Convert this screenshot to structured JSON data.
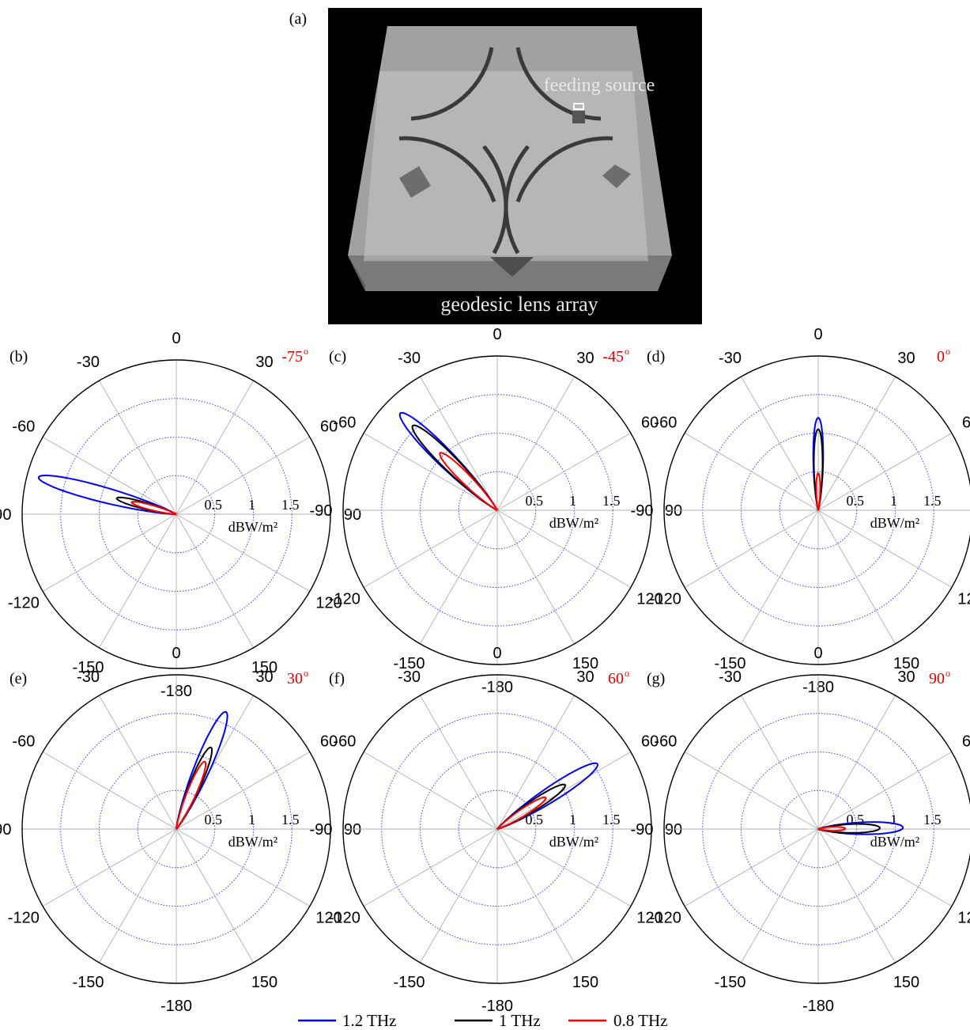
{
  "panel_a": {
    "label": "(a)",
    "annotations": {
      "feed": "feeding source",
      "array": "geodesic lens array"
    },
    "colors": {
      "background": "#000000",
      "lens": "#b8b8b8",
      "text": "#e8e8e8"
    }
  },
  "legend": {
    "placement": "bottom-center",
    "entries": [
      {
        "label": "1.2 THz",
        "color": "#0000ff"
      },
      {
        "label": "1 THz",
        "color": "#000000"
      },
      {
        "label": "0.8 THz",
        "color": "#ff0000"
      }
    ]
  },
  "chart_data": [
    {
      "type": "polar",
      "panel": "(b)",
      "steer_label": "-75",
      "steer_unit": "o",
      "angle_ticks": [
        0,
        30,
        60,
        90,
        120,
        150,
        -180,
        -150,
        -120,
        -90,
        -60,
        -30
      ],
      "radial_ticks": [
        "0.5",
        "1",
        "1.5"
      ],
      "radial_unit": "dBW/m²",
      "rlim": [
        0,
        2
      ],
      "grid": true,
      "series": [
        {
          "name": "1.2 THz",
          "color": "#0000ff",
          "main_lobe_angle": -75,
          "peak": 1.85,
          "beamwidth": 6
        },
        {
          "name": "1 THz",
          "color": "#000000",
          "main_lobe_angle": -75,
          "peak": 0.8,
          "beamwidth": 6
        },
        {
          "name": "0.8 THz",
          "color": "#ff0000",
          "main_lobe_angle": -75,
          "peak": 0.6,
          "beamwidth": 6
        }
      ]
    },
    {
      "type": "polar",
      "panel": "(c)",
      "steer_label": "-45",
      "steer_unit": "o",
      "angle_ticks": [
        0,
        30,
        60,
        90,
        120,
        150,
        -180,
        -150,
        -120,
        -90,
        -60,
        -30
      ],
      "radial_ticks": [
        "0.5",
        "1",
        "1.5"
      ],
      "radial_unit": "dBW/m²",
      "rlim": [
        0,
        2
      ],
      "grid": true,
      "series": [
        {
          "name": "1.2 THz",
          "color": "#0000ff",
          "main_lobe_angle": -45,
          "peak": 1.78,
          "beamwidth": 7
        },
        {
          "name": "1 THz",
          "color": "#000000",
          "main_lobe_angle": -45,
          "peak": 1.55,
          "beamwidth": 7
        },
        {
          "name": "0.8 THz",
          "color": "#ff0000",
          "main_lobe_angle": -45,
          "peak": 1.05,
          "beamwidth": 7
        }
      ]
    },
    {
      "type": "polar",
      "panel": "(d)",
      "steer_label": "0",
      "steer_unit": "o",
      "angle_ticks": [
        0,
        30,
        60,
        90,
        120,
        150,
        -180,
        -150,
        -120,
        -90,
        -60,
        -30
      ],
      "radial_ticks": [
        "0.5",
        "1",
        "1.5"
      ],
      "radial_unit": "dBW/m²",
      "rlim": [
        0,
        2
      ],
      "grid": true,
      "series": [
        {
          "name": "1.2 THz",
          "color": "#0000ff",
          "main_lobe_angle": 0,
          "peak": 1.2,
          "beamwidth": 6
        },
        {
          "name": "1 THz",
          "color": "#000000",
          "main_lobe_angle": 0,
          "peak": 1.05,
          "beamwidth": 6
        },
        {
          "name": "0.8 THz",
          "color": "#ff0000",
          "main_lobe_angle": 0,
          "peak": 0.48,
          "beamwidth": 6
        }
      ]
    },
    {
      "type": "polar",
      "panel": "(e)",
      "steer_label": "30",
      "steer_unit": "o",
      "angle_ticks": [
        0,
        30,
        60,
        90,
        120,
        150,
        -180,
        -150,
        -120,
        -90,
        -60,
        -30
      ],
      "radial_ticks": [
        "0.5",
        "1",
        "1.5"
      ],
      "radial_unit": "dBW/m²",
      "rlim": [
        0,
        2
      ],
      "grid": true,
      "series": [
        {
          "name": "1.2 THz",
          "color": "#0000ff",
          "main_lobe_angle": 23,
          "peak": 1.65,
          "beamwidth": 7
        },
        {
          "name": "1 THz",
          "color": "#000000",
          "main_lobe_angle": 23,
          "peak": 1.15,
          "beamwidth": 7
        },
        {
          "name": "0.8 THz",
          "color": "#ff0000",
          "main_lobe_angle": 23,
          "peak": 0.95,
          "beamwidth": 7
        }
      ]
    },
    {
      "type": "polar",
      "panel": "(f)",
      "steer_label": "60",
      "steer_unit": "o",
      "angle_ticks": [
        0,
        30,
        60,
        90,
        120,
        150,
        -180,
        -150,
        -120,
        -90,
        -60,
        -30
      ],
      "radial_ticks": [
        "0.5",
        "1",
        "1.5"
      ],
      "radial_unit": "dBW/m²",
      "rlim": [
        0,
        2
      ],
      "grid": true,
      "series": [
        {
          "name": "1.2 THz",
          "color": "#0000ff",
          "main_lobe_angle": 57,
          "peak": 1.55,
          "beamwidth": 7
        },
        {
          "name": "1 THz",
          "color": "#000000",
          "main_lobe_angle": 57,
          "peak": 1.05,
          "beamwidth": 7
        },
        {
          "name": "0.8 THz",
          "color": "#ff0000",
          "main_lobe_angle": 57,
          "peak": 0.75,
          "beamwidth": 7
        }
      ]
    },
    {
      "type": "polar",
      "panel": "(g)",
      "steer_label": "90",
      "steer_unit": "o",
      "angle_ticks": [
        0,
        30,
        60,
        90,
        120,
        150,
        -180,
        -150,
        -120,
        -90,
        -60,
        -30
      ],
      "radial_ticks": [
        "0.5",
        "1",
        "1.5"
      ],
      "radial_unit": "dBW/m²",
      "rlim": [
        0,
        2
      ],
      "grid": true,
      "series": [
        {
          "name": "1.2 THz",
          "color": "#0000ff",
          "main_lobe_angle": 89,
          "peak": 1.1,
          "beamwidth": 8
        },
        {
          "name": "1 THz",
          "color": "#000000",
          "main_lobe_angle": 89,
          "peak": 0.8,
          "beamwidth": 8
        },
        {
          "name": "0.8 THz",
          "color": "#ff0000",
          "main_lobe_angle": 89,
          "peak": 0.35,
          "beamwidth": 8
        }
      ]
    }
  ]
}
